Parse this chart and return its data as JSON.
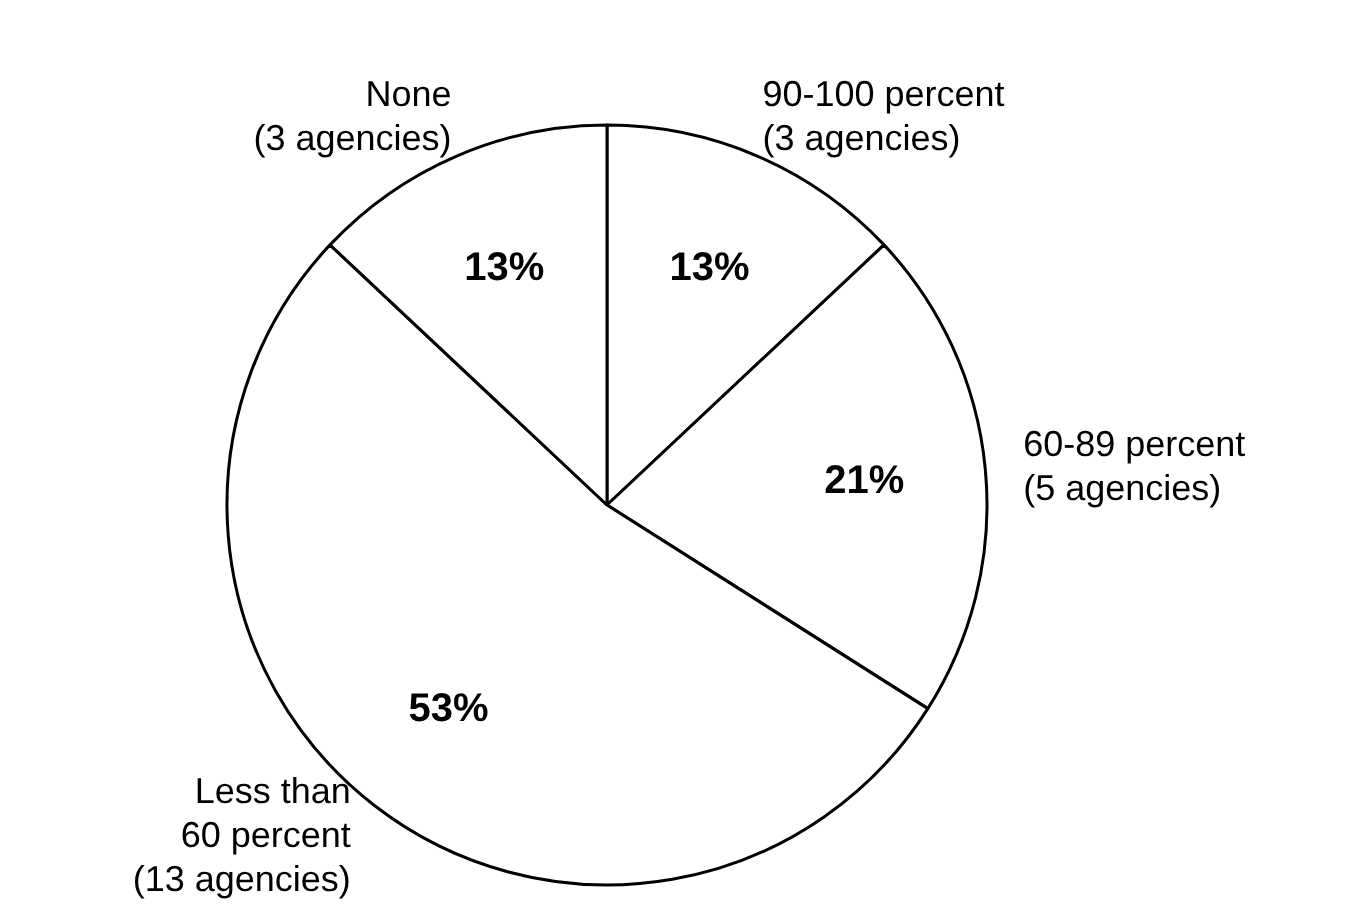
{
  "chart_data": {
    "type": "pie",
    "categories": [
      "90-100 percent\n(3 agencies)",
      "60-89 percent\n(5 agencies)",
      "Less than\n60 percent\n(13 agencies)",
      "None\n(3 agencies)"
    ],
    "values": [
      13,
      21,
      53,
      13
    ],
    "colors": [
      "#ffffff",
      "#ffffff",
      "#ffffff",
      "#ffffff"
    ],
    "value_labels": [
      "13%",
      "21%",
      "53%",
      "13%"
    ],
    "legend": false
  }
}
